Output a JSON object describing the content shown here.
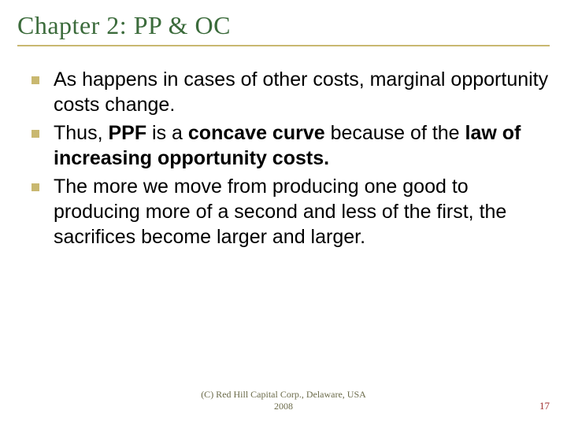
{
  "title": "Chapter 2: PP & OC",
  "bullets": [
    {
      "html": "As happens in cases of other costs, marginal opportunity costs change."
    },
    {
      "html": "Thus, <b>PPF</b> is a <b>concave curve</b> because of the <b>law of increasing opportunity costs.</b>"
    },
    {
      "html": "The more we move from producing one good to producing more of a second and less of the first, the sacrifices become larger and larger."
    }
  ],
  "footer_line1": "(C) Red Hill Capital Corp., Delaware, USA",
  "footer_line2": "2008",
  "page_number": "17",
  "colors": {
    "title_color": "#3b6b3b",
    "underline_color": "#c9b870",
    "bullet_marker_color": "#c9b870",
    "body_text_color": "#000000",
    "footer_color": "#6b6b4a",
    "page_number_color": "#a03030",
    "background": "#ffffff"
  },
  "typography": {
    "title_fontsize": 32,
    "body_fontsize": 25,
    "footer_fontsize": 12,
    "pagenum_fontsize": 13,
    "title_family": "Georgia",
    "body_family": "Arial"
  }
}
